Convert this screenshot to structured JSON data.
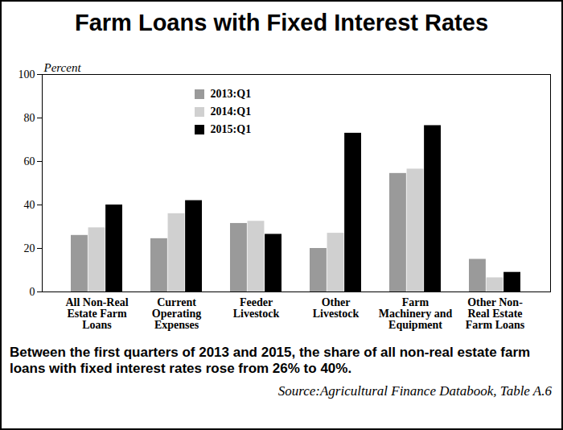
{
  "chart_data": {
    "type": "bar",
    "title": "Farm Loans with Fixed Interest Rates",
    "ylabel": "Percent",
    "categories": [
      "All Non-Real\nEstate Farm\nLoans",
      "Current\nOperating\nExpenses",
      "Feeder\nLivestock",
      "Other\nLivestock",
      "Farm\nMachinery and\nEquipment",
      "Other Non-\nReal Estate\nFarm Loans"
    ],
    "series": [
      {
        "name": "2013:Q1",
        "color": "#9a9a9a",
        "values": [
          26,
          24.5,
          31.5,
          20,
          54.5,
          15
        ]
      },
      {
        "name": "2014:Q1",
        "color": "#d0d0d0",
        "values": [
          29.5,
          36,
          32.5,
          27,
          56.5,
          6.5
        ]
      },
      {
        "name": "2015:Q1",
        "color": "#000000",
        "values": [
          40,
          42,
          26.5,
          73,
          76.5,
          9
        ]
      }
    ],
    "ylim": [
      0,
      100
    ],
    "yticks": [
      0,
      20,
      40,
      60,
      80,
      100
    ],
    "grid": false,
    "legend": "top",
    "annotations": [
      "Between the first quarters of 2013 and 2015, the share of all non-real estate farm loans with fixed interest rates rose from 26% to 40%.",
      "Source:Agricultural Finance Databook, Table A.6"
    ]
  }
}
